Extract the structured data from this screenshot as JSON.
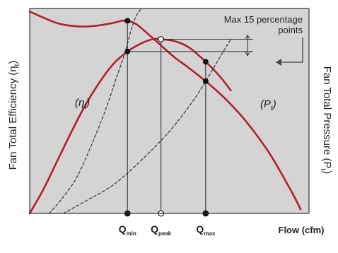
{
  "chart_data": {
    "type": "line",
    "title": "",
    "xlabel": "Flow (cfm)",
    "ylabel_left": "Fan Total Efficiency (η",
    "ylabel_left_sub": "t",
    "ylabel_right": "Fan Total Pressure (P",
    "ylabel_right_sub": "t",
    "curve_labels": {
      "efficiency": "(η",
      "efficiency_sub": "t",
      "pressure": "(P",
      "pressure_sub": "t"
    },
    "annotation": {
      "line1": "Max 15 percentage",
      "line2": "points"
    },
    "x_ticks": [
      {
        "main": "Q",
        "sub": "min",
        "x": 0.35
      },
      {
        "main": "Q",
        "sub": "peak",
        "x": 0.47
      },
      {
        "main": "Q",
        "sub": "max",
        "x": 0.63
      }
    ],
    "series": [
      {
        "key": "pressure",
        "color": "#b3202a",
        "points": [
          [
            0.0,
            0.985
          ],
          [
            0.05,
            0.955
          ],
          [
            0.1,
            0.928
          ],
          [
            0.15,
            0.915
          ],
          [
            0.2,
            0.912
          ],
          [
            0.25,
            0.918
          ],
          [
            0.3,
            0.93
          ],
          [
            0.33,
            0.94
          ],
          [
            0.35,
            0.94
          ],
          [
            0.38,
            0.925
          ],
          [
            0.42,
            0.88
          ],
          [
            0.47,
            0.82
          ],
          [
            0.52,
            0.76
          ],
          [
            0.57,
            0.71
          ],
          [
            0.63,
            0.645
          ],
          [
            0.7,
            0.56
          ],
          [
            0.78,
            0.44
          ],
          [
            0.86,
            0.29
          ],
          [
            0.94,
            0.1
          ],
          [
            0.97,
            0.02
          ]
        ]
      },
      {
        "key": "efficiency",
        "color": "#b3202a",
        "points": [
          [
            0.0,
            0.0
          ],
          [
            0.05,
            0.12
          ],
          [
            0.1,
            0.26
          ],
          [
            0.15,
            0.4
          ],
          [
            0.2,
            0.53
          ],
          [
            0.25,
            0.64
          ],
          [
            0.3,
            0.73
          ],
          [
            0.35,
            0.79
          ],
          [
            0.4,
            0.83
          ],
          [
            0.44,
            0.85
          ],
          [
            0.47,
            0.85
          ],
          [
            0.52,
            0.84
          ],
          [
            0.57,
            0.81
          ],
          [
            0.63,
            0.74
          ],
          [
            0.68,
            0.67
          ],
          [
            0.72,
            0.6
          ]
        ]
      },
      {
        "key": "system_curve_1",
        "color": "#333333",
        "dashed": true,
        "points": [
          [
            0.07,
            0.0
          ],
          [
            0.12,
            0.08
          ],
          [
            0.17,
            0.18
          ],
          [
            0.22,
            0.33
          ],
          [
            0.27,
            0.5
          ],
          [
            0.31,
            0.66
          ],
          [
            0.34,
            0.78
          ],
          [
            0.36,
            0.88
          ],
          [
            0.38,
            0.96
          ],
          [
            0.4,
            1.0
          ]
        ]
      },
      {
        "key": "system_curve_2",
        "color": "#333333",
        "dashed": true,
        "points": [
          [
            0.12,
            0.0
          ],
          [
            0.2,
            0.06
          ],
          [
            0.3,
            0.14
          ],
          [
            0.4,
            0.26
          ],
          [
            0.5,
            0.4
          ],
          [
            0.58,
            0.54
          ],
          [
            0.63,
            0.645
          ],
          [
            0.68,
            0.76
          ],
          [
            0.72,
            0.85
          ]
        ]
      }
    ],
    "markers": [
      {
        "x": 0.35,
        "y": 0.94,
        "style": "filled"
      },
      {
        "x": 0.35,
        "y": 0.79,
        "style": "filled"
      },
      {
        "x": 0.47,
        "y": 0.85,
        "style": "open"
      },
      {
        "x": 0.63,
        "y": 0.74,
        "style": "filled"
      },
      {
        "x": 0.63,
        "y": 0.645,
        "style": "filled"
      }
    ],
    "xlim": [
      0,
      1
    ],
    "ylim": [
      0,
      1
    ],
    "grid": false,
    "plot_background": "#d4d4d4"
  }
}
